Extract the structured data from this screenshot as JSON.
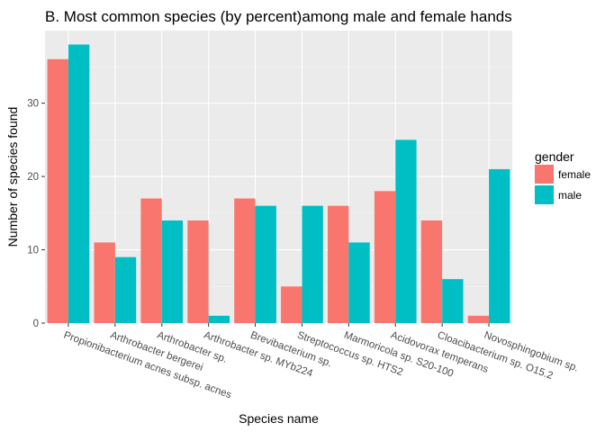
{
  "chart_data": {
    "type": "bar",
    "title": "B. Most common species (by percent)among male and female hands",
    "xlabel": "Species name",
    "ylabel": "Number of species found",
    "categories": [
      "Propionibacterium acnes subsp. acnes",
      "Arthrobacter bergerei",
      "Arthrobacter sp.",
      "Arthrobacter sp. MYb224",
      "Brevibacterium sp.",
      "Streptococcus sp. HTS2",
      "Marmoricola sp. S20-100",
      "Acidovorax temperans",
      "Cloacibacterium sp. O15.2",
      "Novosphingobium sp."
    ],
    "series": [
      {
        "name": "female",
        "color": "#F8766D",
        "values": [
          36,
          11,
          17,
          14,
          17,
          5,
          16,
          18,
          14,
          1
        ]
      },
      {
        "name": "male",
        "color": "#00BFC4",
        "values": [
          38,
          9,
          14,
          1,
          16,
          16,
          11,
          25,
          6,
          21
        ]
      }
    ],
    "yticks": [
      0,
      10,
      20,
      30
    ],
    "ylim": [
      0,
      39.9
    ],
    "legend": {
      "title": "gender",
      "position": "right"
    },
    "grid": true,
    "panel_background": "#EBEBEB"
  }
}
